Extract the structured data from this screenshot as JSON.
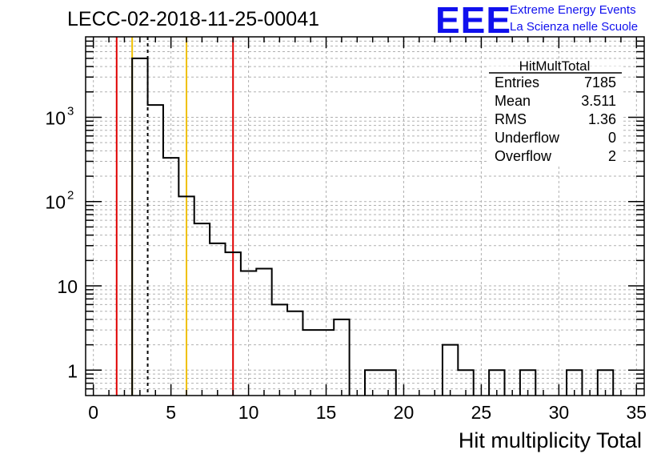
{
  "title": "LECC-02-2018-11-25-00041",
  "logo": {
    "mark": "EEE",
    "line1": "Extreme Energy Events",
    "line2": "La Scienza nelle Scuole",
    "color": "#1010ee"
  },
  "stats": {
    "name": "HitMultTotal",
    "rows": [
      {
        "label": "Entries",
        "value": "7185"
      },
      {
        "label": "Mean",
        "value": "3.511"
      },
      {
        "label": "RMS",
        "value": "1.36"
      },
      {
        "label": "Underflow",
        "value": "0"
      },
      {
        "label": "Overflow",
        "value": "2"
      }
    ]
  },
  "chart_data": {
    "type": "histogram",
    "xlabel": "Hit multiplicity Total",
    "ylabel": "",
    "xlim": [
      -0.5,
      35.5
    ],
    "ylim": [
      0.5,
      9000
    ],
    "y_scale": "log",
    "grid": true,
    "line_color": "#000000",
    "bins": [
      {
        "low": 2.5,
        "high": 3.5,
        "count": 5000
      },
      {
        "low": 3.5,
        "high": 4.5,
        "count": 1400
      },
      {
        "low": 4.5,
        "high": 5.5,
        "count": 330
      },
      {
        "low": 5.5,
        "high": 6.5,
        "count": 115
      },
      {
        "low": 6.5,
        "high": 7.5,
        "count": 55
      },
      {
        "low": 7.5,
        "high": 8.5,
        "count": 32
      },
      {
        "low": 8.5,
        "high": 9.5,
        "count": 25
      },
      {
        "low": 9.5,
        "high": 10.5,
        "count": 15
      },
      {
        "low": 10.5,
        "high": 11.5,
        "count": 16
      },
      {
        "low": 11.5,
        "high": 12.5,
        "count": 6
      },
      {
        "low": 12.5,
        "high": 13.5,
        "count": 5
      },
      {
        "low": 13.5,
        "high": 14.5,
        "count": 3
      },
      {
        "low": 14.5,
        "high": 15.5,
        "count": 3
      },
      {
        "low": 15.5,
        "high": 16.5,
        "count": 4
      },
      {
        "low": 17.5,
        "high": 18.5,
        "count": 1
      },
      {
        "low": 18.5,
        "high": 19.5,
        "count": 1
      },
      {
        "low": 22.5,
        "high": 23.5,
        "count": 2
      },
      {
        "low": 23.5,
        "high": 24.5,
        "count": 1
      },
      {
        "low": 25.5,
        "high": 26.5,
        "count": 1
      },
      {
        "low": 27.5,
        "high": 28.5,
        "count": 1
      },
      {
        "low": 30.5,
        "high": 31.5,
        "count": 1
      },
      {
        "low": 32.5,
        "high": 33.5,
        "count": 1
      }
    ],
    "reference_lines": [
      {
        "x": 1.5,
        "color": "#e00000",
        "style": "solid"
      },
      {
        "x": 2.5,
        "color": "#f0c000",
        "style": "solid"
      },
      {
        "x": 3.5,
        "color": "#000000",
        "style": "dashed"
      },
      {
        "x": 6.0,
        "color": "#f0c000",
        "style": "solid"
      },
      {
        "x": 9.0,
        "color": "#e00000",
        "style": "solid"
      }
    ],
    "x_ticks": [
      0,
      5,
      10,
      15,
      20,
      25,
      30,
      35
    ],
    "y_tick_labels": [
      {
        "value": 1,
        "mantissa": "1",
        "exponent": ""
      },
      {
        "value": 10,
        "mantissa": "10",
        "exponent": ""
      },
      {
        "value": 100,
        "mantissa": "10",
        "exponent": "2"
      },
      {
        "value": 1000,
        "mantissa": "10",
        "exponent": "3"
      }
    ]
  }
}
